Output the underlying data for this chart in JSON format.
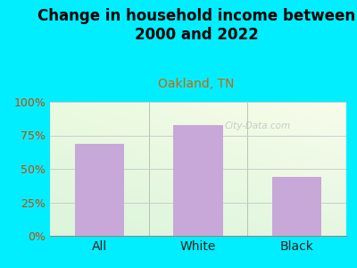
{
  "title": "Change in household income between\n2000 and 2022",
  "subtitle": "Oakland, TN",
  "categories": [
    "All",
    "White",
    "Black"
  ],
  "values": [
    69,
    83,
    44
  ],
  "bar_color": "#c8a8d8",
  "title_fontsize": 12,
  "subtitle_fontsize": 10,
  "subtitle_color": "#cc6600",
  "title_color": "#000000",
  "tick_color": "#cc4400",
  "background_outer": "#00eeff",
  "ylim": [
    0,
    100
  ],
  "yticks": [
    0,
    25,
    50,
    75,
    100
  ],
  "ytick_labels": [
    "0%",
    "25%",
    "50%",
    "75%",
    "100%"
  ],
  "watermark": "City-Data.com"
}
